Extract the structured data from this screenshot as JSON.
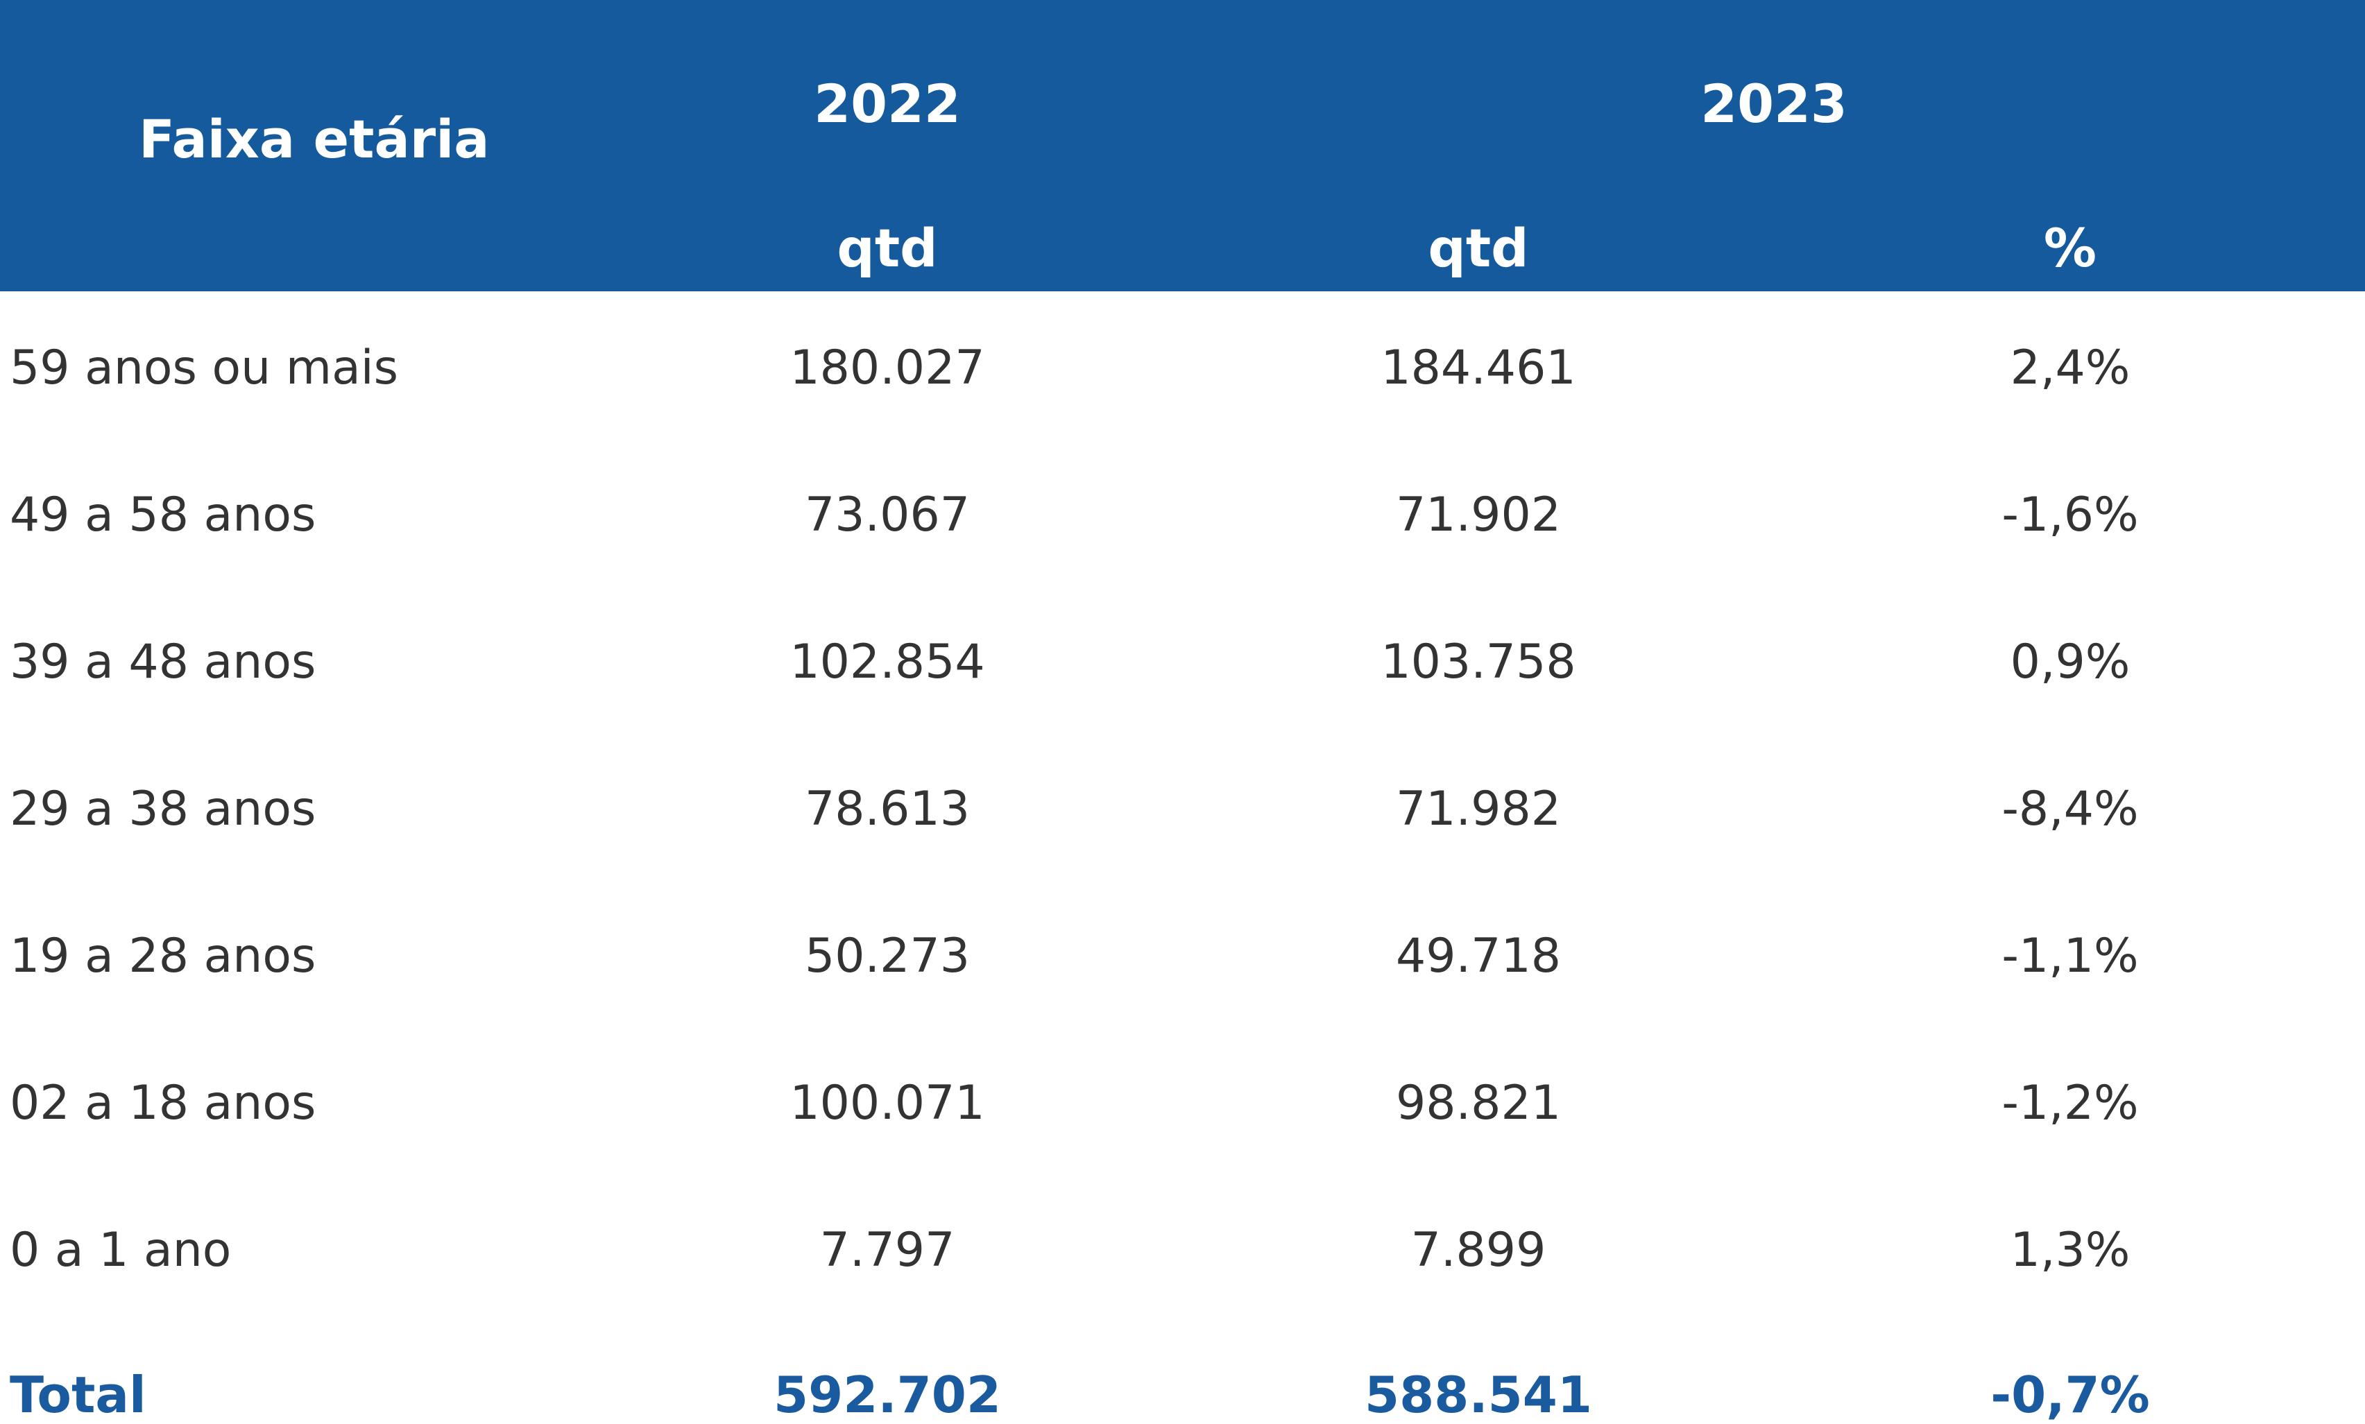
{
  "colors": {
    "header_bg": "#165a9e",
    "header_text": "#ffffff",
    "body_text": "#333333",
    "total_text": "#1a5a9e"
  },
  "header": {
    "label_col": "Faixa etária",
    "year_2022": "2022",
    "year_2023": "2023",
    "sub_qtd_2022": "qtd",
    "sub_qtd_2023": "qtd",
    "sub_pct_2023": "%"
  },
  "rows": [
    {
      "faixa": "59 anos ou mais",
      "qtd_2022": "180.027",
      "qtd_2023": "184.461",
      "pct": "2,4%"
    },
    {
      "faixa": "49 a 58 anos",
      "qtd_2022": "73.067",
      "qtd_2023": "71.902",
      "pct": "-1,6%"
    },
    {
      "faixa": "39 a 48 anos",
      "qtd_2022": "102.854",
      "qtd_2023": "103.758",
      "pct": "0,9%"
    },
    {
      "faixa": "29 a 38 anos",
      "qtd_2022": "78.613",
      "qtd_2023": "71.982",
      "pct": "-8,4%"
    },
    {
      "faixa": "19 a 28 anos",
      "qtd_2022": "50.273",
      "qtd_2023": "49.718",
      "pct": "-1,1%"
    },
    {
      "faixa": "02 a 18 anos",
      "qtd_2022": "100.071",
      "qtd_2023": "98.821",
      "pct": "-1,2%"
    },
    {
      "faixa": "0 a 1 ano",
      "qtd_2022": "7.797",
      "qtd_2023": "7.899",
      "pct": "1,3%"
    }
  ],
  "total": {
    "label": "Total",
    "qtd_2022": "592.702",
    "qtd_2023": "588.541",
    "pct": "-0,7%"
  }
}
